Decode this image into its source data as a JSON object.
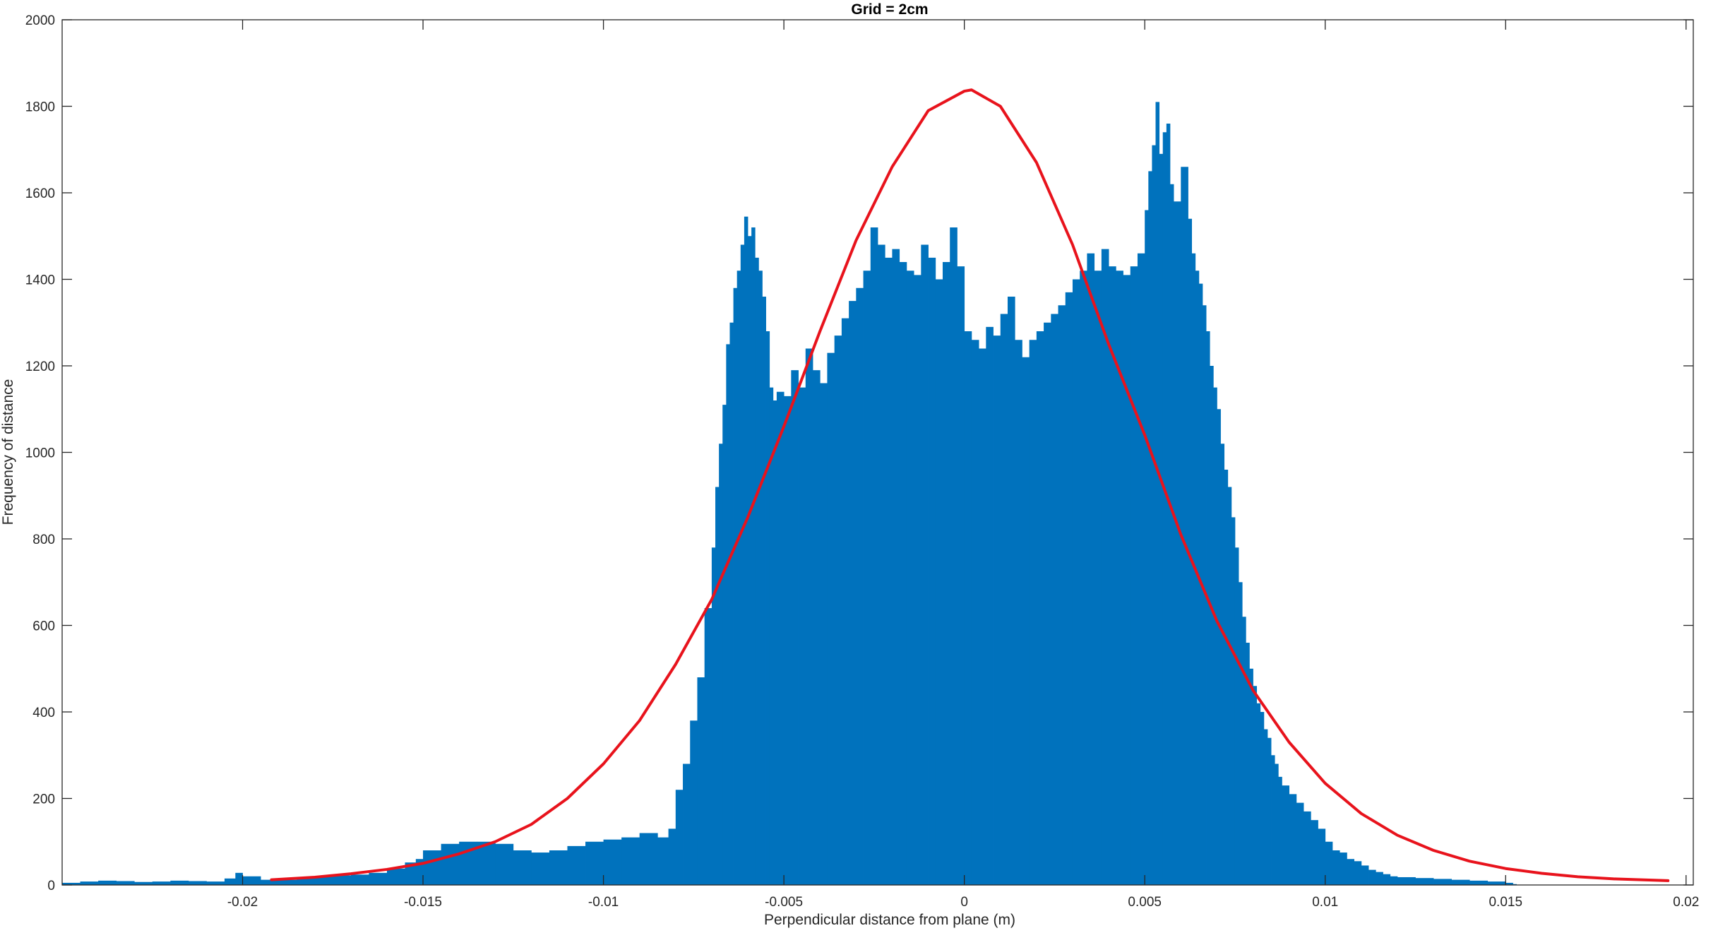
{
  "chart_data": {
    "type": "bar",
    "subtype": "histogram-with-fitted-curve",
    "title": "Grid = 2cm",
    "xlabel": "Perpendicular distance from plane (m)",
    "ylabel": "Frequency of distance",
    "xlim": [
      -0.025,
      0.0202
    ],
    "ylim": [
      0,
      2000
    ],
    "xticks": [
      -0.02,
      -0.015,
      -0.01,
      -0.005,
      0,
      0.005,
      0.01,
      0.015,
      0.02
    ],
    "xtick_labels": [
      "-0.02",
      "-0.015",
      "-0.01",
      "-0.005",
      "0",
      "0.005",
      "0.01",
      "0.015",
      "0.02"
    ],
    "yticks": [
      0,
      200,
      400,
      600,
      800,
      1000,
      1200,
      1400,
      1600,
      1800,
      2000
    ],
    "ytick_labels": [
      "0",
      "200",
      "400",
      "600",
      "800",
      "1000",
      "1200",
      "1400",
      "1600",
      "1800",
      "2000"
    ],
    "grid": false,
    "legend": "none",
    "colors": {
      "bars": "#0072BD",
      "curve": "#E8131C",
      "axes": "#262626"
    },
    "histogram": {
      "bin_width": 0.0001,
      "bins": [
        [
          -0.025,
          5
        ],
        [
          -0.0245,
          8
        ],
        [
          -0.024,
          10
        ],
        [
          -0.0235,
          9
        ],
        [
          -0.023,
          7
        ],
        [
          -0.0225,
          8
        ],
        [
          -0.022,
          10
        ],
        [
          -0.0215,
          9
        ],
        [
          -0.021,
          8
        ],
        [
          -0.0205,
          15
        ],
        [
          -0.0202,
          28
        ],
        [
          -0.02,
          20
        ],
        [
          -0.0195,
          12
        ],
        [
          -0.019,
          12
        ],
        [
          -0.0185,
          16
        ],
        [
          -0.018,
          20
        ],
        [
          -0.0175,
          22
        ],
        [
          -0.017,
          24
        ],
        [
          -0.0165,
          28
        ],
        [
          -0.016,
          38
        ],
        [
          -0.0155,
          52
        ],
        [
          -0.0152,
          60
        ],
        [
          -0.015,
          80
        ],
        [
          -0.0145,
          95
        ],
        [
          -0.014,
          100
        ],
        [
          -0.0135,
          100
        ],
        [
          -0.013,
          95
        ],
        [
          -0.0125,
          80
        ],
        [
          -0.012,
          75
        ],
        [
          -0.0115,
          80
        ],
        [
          -0.011,
          90
        ],
        [
          -0.0105,
          100
        ],
        [
          -0.01,
          105
        ],
        [
          -0.0095,
          110
        ],
        [
          -0.009,
          120
        ],
        [
          -0.0085,
          110
        ],
        [
          -0.0082,
          130
        ],
        [
          -0.008,
          220
        ],
        [
          -0.0078,
          280
        ],
        [
          -0.0076,
          380
        ],
        [
          -0.0074,
          480
        ],
        [
          -0.0072,
          640
        ],
        [
          -0.007,
          780
        ],
        [
          -0.0069,
          920
        ],
        [
          -0.0068,
          1020
        ],
        [
          -0.0067,
          1110
        ],
        [
          -0.0066,
          1250
        ],
        [
          -0.0065,
          1300
        ],
        [
          -0.0064,
          1380
        ],
        [
          -0.0063,
          1420
        ],
        [
          -0.0062,
          1480
        ],
        [
          -0.0061,
          1545
        ],
        [
          -0.006,
          1500
        ],
        [
          -0.0059,
          1520
        ],
        [
          -0.0058,
          1450
        ],
        [
          -0.0057,
          1420
        ],
        [
          -0.0056,
          1360
        ],
        [
          -0.0055,
          1280
        ],
        [
          -0.0054,
          1150
        ],
        [
          -0.0053,
          1120
        ],
        [
          -0.0052,
          1140
        ],
        [
          -0.005,
          1130
        ],
        [
          -0.0048,
          1190
        ],
        [
          -0.0046,
          1150
        ],
        [
          -0.0044,
          1240
        ],
        [
          -0.0042,
          1190
        ],
        [
          -0.004,
          1160
        ],
        [
          -0.0038,
          1230
        ],
        [
          -0.0036,
          1270
        ],
        [
          -0.0034,
          1310
        ],
        [
          -0.0032,
          1350
        ],
        [
          -0.003,
          1380
        ],
        [
          -0.0028,
          1420
        ],
        [
          -0.0026,
          1520
        ],
        [
          -0.0024,
          1480
        ],
        [
          -0.0022,
          1450
        ],
        [
          -0.002,
          1470
        ],
        [
          -0.0018,
          1440
        ],
        [
          -0.0016,
          1420
        ],
        [
          -0.0014,
          1410
        ],
        [
          -0.0012,
          1480
        ],
        [
          -0.001,
          1450
        ],
        [
          -0.0008,
          1400
        ],
        [
          -0.0006,
          1440
        ],
        [
          -0.0004,
          1520
        ],
        [
          -0.0002,
          1430
        ],
        [
          0,
          1280
        ],
        [
          0.0002,
          1260
        ],
        [
          0.0004,
          1240
        ],
        [
          0.0006,
          1290
        ],
        [
          0.0008,
          1270
        ],
        [
          0.001,
          1320
        ],
        [
          0.0012,
          1360
        ],
        [
          0.0014,
          1260
        ],
        [
          0.0016,
          1220
        ],
        [
          0.0018,
          1260
        ],
        [
          0.002,
          1280
        ],
        [
          0.0022,
          1300
        ],
        [
          0.0024,
          1320
        ],
        [
          0.0026,
          1340
        ],
        [
          0.0028,
          1370
        ],
        [
          0.003,
          1400
        ],
        [
          0.0032,
          1420
        ],
        [
          0.0034,
          1460
        ],
        [
          0.0036,
          1420
        ],
        [
          0.0038,
          1470
        ],
        [
          0.004,
          1430
        ],
        [
          0.0042,
          1420
        ],
        [
          0.0044,
          1410
        ],
        [
          0.0046,
          1430
        ],
        [
          0.0048,
          1460
        ],
        [
          0.005,
          1560
        ],
        [
          0.0051,
          1650
        ],
        [
          0.0052,
          1710
        ],
        [
          0.0053,
          1810
        ],
        [
          0.0054,
          1690
        ],
        [
          0.0055,
          1740
        ],
        [
          0.0056,
          1760
        ],
        [
          0.0057,
          1620
        ],
        [
          0.0058,
          1580
        ],
        [
          0.006,
          1660
        ],
        [
          0.0062,
          1540
        ],
        [
          0.0063,
          1460
        ],
        [
          0.0064,
          1420
        ],
        [
          0.0065,
          1390
        ],
        [
          0.0066,
          1340
        ],
        [
          0.0067,
          1280
        ],
        [
          0.0068,
          1200
        ],
        [
          0.0069,
          1150
        ],
        [
          0.007,
          1100
        ],
        [
          0.0071,
          1020
        ],
        [
          0.0072,
          960
        ],
        [
          0.0073,
          920
        ],
        [
          0.0074,
          850
        ],
        [
          0.0075,
          780
        ],
        [
          0.0076,
          700
        ],
        [
          0.0077,
          620
        ],
        [
          0.0078,
          560
        ],
        [
          0.0079,
          500
        ],
        [
          0.008,
          460
        ],
        [
          0.0081,
          420
        ],
        [
          0.0082,
          400
        ],
        [
          0.0083,
          360
        ],
        [
          0.0084,
          340
        ],
        [
          0.0085,
          300
        ],
        [
          0.0086,
          280
        ],
        [
          0.0087,
          250
        ],
        [
          0.0088,
          230
        ],
        [
          0.009,
          210
        ],
        [
          0.0092,
          190
        ],
        [
          0.0094,
          170
        ],
        [
          0.0096,
          150
        ],
        [
          0.0098,
          130
        ],
        [
          0.01,
          100
        ],
        [
          0.0102,
          80
        ],
        [
          0.0104,
          75
        ],
        [
          0.0106,
          60
        ],
        [
          0.0108,
          55
        ],
        [
          0.011,
          45
        ],
        [
          0.0112,
          35
        ],
        [
          0.0114,
          30
        ],
        [
          0.0116,
          25
        ],
        [
          0.0118,
          20
        ],
        [
          0.012,
          18
        ],
        [
          0.0125,
          16
        ],
        [
          0.013,
          14
        ],
        [
          0.0135,
          12
        ],
        [
          0.014,
          10
        ],
        [
          0.0145,
          8
        ],
        [
          0.015,
          5
        ],
        [
          0.0152,
          2
        ]
      ]
    },
    "fitted_curve": {
      "x": [
        -0.0192,
        -0.018,
        -0.017,
        -0.016,
        -0.015,
        -0.014,
        -0.013,
        -0.012,
        -0.011,
        -0.01,
        -0.009,
        -0.008,
        -0.007,
        -0.006,
        -0.005,
        -0.004,
        -0.003,
        -0.002,
        -0.001,
        0,
        0.0002,
        0.001,
        0.002,
        0.003,
        0.004,
        0.005,
        0.006,
        0.007,
        0.008,
        0.009,
        0.01,
        0.011,
        0.012,
        0.013,
        0.014,
        0.015,
        0.016,
        0.017,
        0.018,
        0.0195
      ],
      "y": [
        12,
        18,
        26,
        36,
        50,
        72,
        100,
        140,
        200,
        280,
        380,
        510,
        660,
        850,
        1060,
        1280,
        1490,
        1660,
        1790,
        1835,
        1838,
        1800,
        1670,
        1480,
        1250,
        1040,
        810,
        610,
        450,
        330,
        235,
        165,
        115,
        80,
        55,
        38,
        27,
        19,
        14,
        10
      ]
    }
  }
}
